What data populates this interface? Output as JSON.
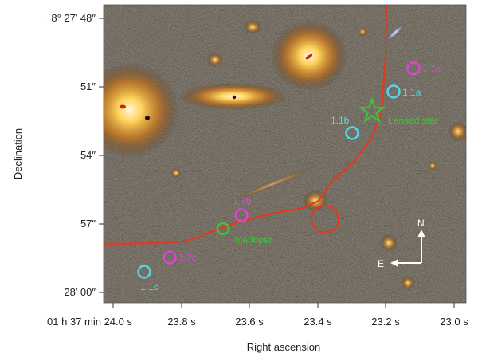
{
  "figure": {
    "axes": {
      "xlabel": "Right ascension",
      "ylabel": "Declination",
      "x_ticks": [
        "01 h 37 min 24.0 s",
        "23.8 s",
        "23.6 s",
        "23.4 s",
        "23.2 s",
        "23.0 s"
      ],
      "y_ticks": [
        "−8° 27′ 48″",
        "51″",
        "54″",
        "57″",
        "28′ 00″"
      ]
    },
    "labels": {
      "img_1_7a": "1.7a",
      "img_1_1a": "1.1a",
      "img_1_1b": "1.1b",
      "lensed_star": "Lensed star",
      "img_1_7b": "1.7b",
      "interloper": "Interloper",
      "img_1_7c": "1.7c",
      "img_1_1c": "1.1c"
    },
    "compass": {
      "north": "N",
      "east": "E"
    },
    "colors": {
      "cyan": "#53d6ea",
      "magenta": "#e043d2",
      "green": "#3fc23a",
      "critical_curve": "#e03a22",
      "background": "#1b1b18"
    }
  }
}
